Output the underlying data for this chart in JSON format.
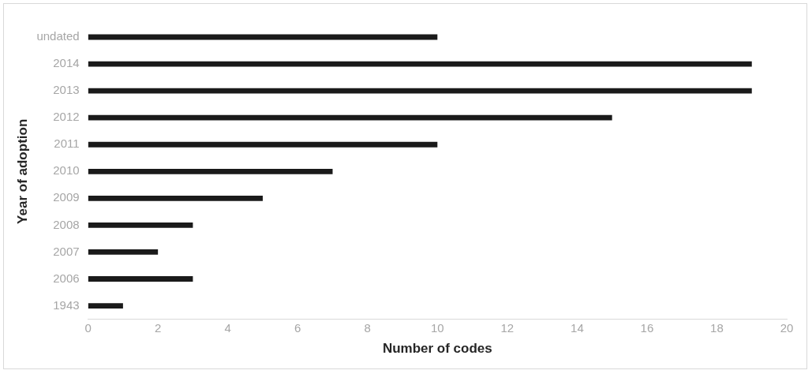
{
  "chart_data": {
    "type": "bar",
    "orientation": "horizontal",
    "xlabel": "Number of codes",
    "ylabel": "Year of adoption",
    "categories": [
      "undated",
      "2014",
      "2013",
      "2012",
      "2011",
      "2010",
      "2009",
      "2008",
      "2007",
      "2006",
      "1943"
    ],
    "values": [
      10,
      19,
      19,
      15,
      10,
      7,
      5,
      3,
      2,
      3,
      1
    ],
    "color": "#1a1a1a",
    "xlim": [
      0,
      20
    ],
    "xticks": [
      0,
      2,
      4,
      6,
      8,
      10,
      12,
      14,
      16,
      18,
      20
    ],
    "grid": false,
    "legend": false
  }
}
